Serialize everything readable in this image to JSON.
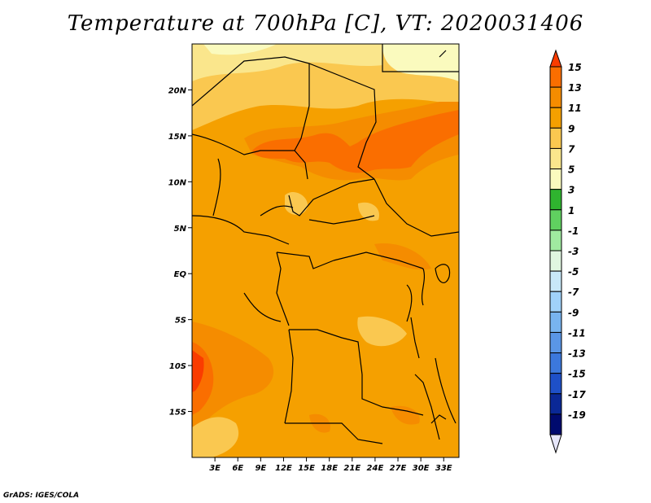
{
  "title": "Temperature at 700hPa [C], VT: 2020031406",
  "credit": "GrADS: IGES/COLA",
  "map": {
    "lon_range": [
      0,
      35
    ],
    "lat_range": [
      -20,
      25
    ],
    "x_ticks": [
      "3E",
      "6E",
      "9E",
      "12E",
      "15E",
      "18E",
      "21E",
      "24E",
      "27E",
      "30E",
      "33E"
    ],
    "y_ticks": [
      "20N",
      "15N",
      "10N",
      "5N",
      "EQ",
      "5S",
      "10S",
      "15S"
    ]
  },
  "colorbar": {
    "levels": [
      "15",
      "13",
      "11",
      "9",
      "7",
      "5",
      "3",
      "1",
      "-1",
      "-3",
      "-5",
      "-7",
      "-9",
      "-11",
      "-13",
      "-15",
      "-17",
      "-19"
    ],
    "colors": [
      "#fa3c00",
      "#fa6e00",
      "#f58c00",
      "#f5a000",
      "#fac850",
      "#fae68c",
      "#fafabe",
      "#2fb42f",
      "#60d060",
      "#a0eaa0",
      "#e0f6e0",
      "#c8e8f8",
      "#a0d2fa",
      "#78b4f0",
      "#5a96e6",
      "#3c78dc",
      "#1e50c8",
      "#0a2896",
      "#000a6e",
      "#e6e6fa"
    ]
  }
}
